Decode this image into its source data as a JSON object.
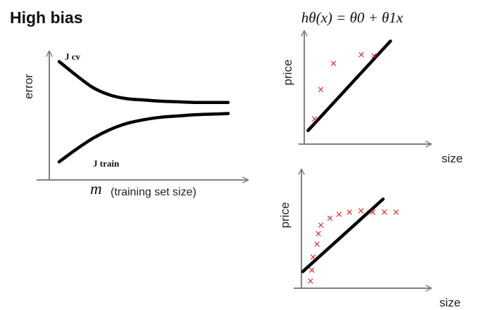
{
  "title": "High bias",
  "chart_data": [
    {
      "type": "line",
      "title": "",
      "xlabel_symbol": "m",
      "xlabel": "(training set size)",
      "ylabel": "error",
      "xlim": [
        0,
        10
      ],
      "ylim": [
        0,
        10
      ],
      "grid": false,
      "series": [
        {
          "name": "J cv",
          "x": [
            0,
            1,
            2,
            3,
            4,
            5,
            6,
            7,
            8,
            9,
            10
          ],
          "values": [
            9.0,
            7.9,
            6.9,
            6.3,
            6.0,
            5.9,
            5.8,
            5.75,
            5.7,
            5.7,
            5.7
          ]
        },
        {
          "name": "J train",
          "x": [
            0,
            1,
            2,
            3,
            4,
            5,
            6,
            7,
            8,
            9,
            10
          ],
          "values": [
            0.9,
            1.9,
            2.8,
            3.5,
            4.0,
            4.3,
            4.5,
            4.6,
            4.7,
            4.75,
            4.8
          ]
        }
      ]
    },
    {
      "type": "scatter",
      "title": "",
      "formula": "hθ(x) = θ0 + θ1x",
      "xlabel": "size",
      "ylabel": "price",
      "xlim": [
        0,
        10
      ],
      "ylim": [
        0,
        10
      ],
      "grid": false,
      "points": {
        "x": [
          0.8,
          1.3,
          2.3,
          4.5,
          5.5
        ],
        "values": [
          2.2,
          4.8,
          7.1,
          7.9,
          7.8
        ]
      },
      "fit_line": {
        "x": [
          0.3,
          6.8
        ],
        "values": [
          1.2,
          9.1
        ]
      }
    },
    {
      "type": "scatter",
      "title": "",
      "xlabel": "size",
      "ylabel": "price",
      "xlim": [
        0,
        10
      ],
      "ylim": [
        0,
        10
      ],
      "grid": false,
      "points": {
        "x": [
          0.7,
          0.8,
          0.9,
          1.2,
          1.3,
          1.5,
          2.2,
          2.9,
          3.7,
          4.6,
          5.5,
          6.4,
          7.3
        ],
        "values": [
          0.6,
          1.5,
          2.6,
          3.7,
          4.6,
          5.3,
          5.9,
          6.2,
          6.4,
          6.5,
          6.4,
          6.4,
          6.4
        ]
      },
      "fit_line": {
        "x": [
          0.1,
          6.3
        ],
        "values": [
          1.4,
          7.5
        ]
      }
    }
  ]
}
